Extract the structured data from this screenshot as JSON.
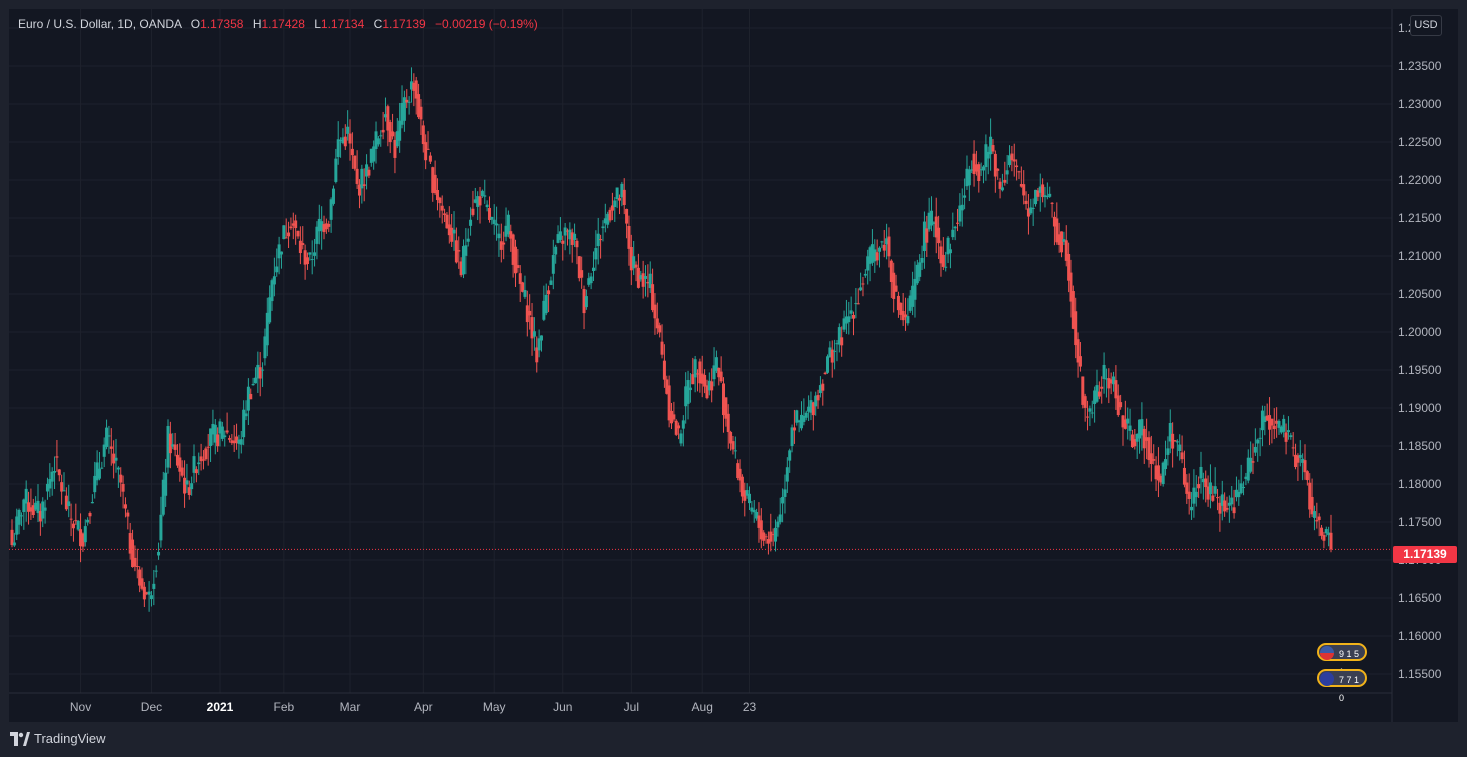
{
  "legend": {
    "symbol": "Euro / U.S. Dollar, 1D, OANDA",
    "open_label": "O",
    "open": "1.17358",
    "high_label": "H",
    "high": "1.17428",
    "low_label": "L",
    "low": "1.17134",
    "close_label": "C",
    "close": "1.17139",
    "change": "−0.00219 (−0.19%)"
  },
  "currency_button": "USD",
  "last_price_tag": "1.17139",
  "events": {
    "top_count": "9 1 5 1",
    "bottom_count": "7 7 1 0"
  },
  "footer": {
    "brand": "TradingView"
  },
  "colors": {
    "up": "#26a69a",
    "down": "#ef5350",
    "background": "#131722",
    "grid": "#1e222d",
    "axis_text": "#b2b5be"
  },
  "chart_data": {
    "type": "candlestick",
    "title": "Euro / U.S. Dollar, 1D, OANDA",
    "y_axis_ticks": [
      "1.24000",
      "1.23500",
      "1.23000",
      "1.22500",
      "1.22000",
      "1.21500",
      "1.21000",
      "1.20500",
      "1.20000",
      "1.19500",
      "1.19000",
      "1.18500",
      "1.18000",
      "1.17500",
      "1.17000",
      "1.16500",
      "1.16000",
      "1.15500"
    ],
    "x_axis_ticks": [
      "Nov",
      "Dec",
      "2021",
      "Feb",
      "Mar",
      "Apr",
      "May",
      "Jun",
      "Jul",
      "Aug",
      "23"
    ],
    "ylim": [
      1.1525,
      1.2425
    ],
    "last_price": 1.17139,
    "grid": true,
    "close_path": [
      {
        "x": 0,
        "close": 1.172
      },
      {
        "x": 5,
        "close": 1.178
      },
      {
        "x": 12,
        "close": 1.176
      },
      {
        "x": 18,
        "close": 1.183
      },
      {
        "x": 24,
        "close": 1.176
      },
      {
        "x": 30,
        "close": 1.173
      },
      {
        "x": 34,
        "close": 1.179
      },
      {
        "x": 40,
        "close": 1.186
      },
      {
        "x": 46,
        "close": 1.18
      },
      {
        "x": 50,
        "close": 1.172
      },
      {
        "x": 54,
        "close": 1.167
      },
      {
        "x": 58,
        "close": 1.165
      },
      {
        "x": 62,
        "close": 1.172
      },
      {
        "x": 66,
        "close": 1.186
      },
      {
        "x": 70,
        "close": 1.183
      },
      {
        "x": 74,
        "close": 1.179
      },
      {
        "x": 78,
        "close": 1.183
      },
      {
        "x": 84,
        "close": 1.186
      },
      {
        "x": 90,
        "close": 1.187
      },
      {
        "x": 96,
        "close": 1.185
      },
      {
        "x": 100,
        "close": 1.192
      },
      {
        "x": 106,
        "close": 1.196
      },
      {
        "x": 110,
        "close": 1.207
      },
      {
        "x": 114,
        "close": 1.212
      },
      {
        "x": 118,
        "close": 1.215
      },
      {
        "x": 122,
        "close": 1.211
      },
      {
        "x": 126,
        "close": 1.209
      },
      {
        "x": 130,
        "close": 1.214
      },
      {
        "x": 134,
        "close": 1.215
      },
      {
        "x": 138,
        "close": 1.225
      },
      {
        "x": 142,
        "close": 1.226
      },
      {
        "x": 146,
        "close": 1.219
      },
      {
        "x": 150,
        "close": 1.221
      },
      {
        "x": 154,
        "close": 1.225
      },
      {
        "x": 158,
        "close": 1.229
      },
      {
        "x": 162,
        "close": 1.224
      },
      {
        "x": 166,
        "close": 1.23
      },
      {
        "x": 170,
        "close": 1.233
      },
      {
        "x": 174,
        "close": 1.225
      },
      {
        "x": 178,
        "close": 1.22
      },
      {
        "x": 182,
        "close": 1.216
      },
      {
        "x": 186,
        "close": 1.213
      },
      {
        "x": 190,
        "close": 1.208
      },
      {
        "x": 194,
        "close": 1.216
      },
      {
        "x": 198,
        "close": 1.218
      },
      {
        "x": 202,
        "close": 1.215
      },
      {
        "x": 206,
        "close": 1.212
      },
      {
        "x": 210,
        "close": 1.214
      },
      {
        "x": 214,
        "close": 1.207
      },
      {
        "x": 218,
        "close": 1.203
      },
      {
        "x": 222,
        "close": 1.197
      },
      {
        "x": 226,
        "close": 1.205
      },
      {
        "x": 230,
        "close": 1.211
      },
      {
        "x": 234,
        "close": 1.213
      },
      {
        "x": 238,
        "close": 1.212
      },
      {
        "x": 242,
        "close": 1.204
      },
      {
        "x": 246,
        "close": 1.21
      },
      {
        "x": 250,
        "close": 1.214
      },
      {
        "x": 254,
        "close": 1.217
      },
      {
        "x": 258,
        "close": 1.218
      },
      {
        "x": 262,
        "close": 1.209
      },
      {
        "x": 266,
        "close": 1.207
      },
      {
        "x": 270,
        "close": 1.206
      },
      {
        "x": 274,
        "close": 1.199
      },
      {
        "x": 278,
        "close": 1.19
      },
      {
        "x": 282,
        "close": 1.186
      },
      {
        "x": 286,
        "close": 1.193
      },
      {
        "x": 290,
        "close": 1.196
      },
      {
        "x": 294,
        "close": 1.192
      },
      {
        "x": 298,
        "close": 1.196
      },
      {
        "x": 302,
        "close": 1.189
      },
      {
        "x": 306,
        "close": 1.183
      },
      {
        "x": 310,
        "close": 1.178
      },
      {
        "x": 314,
        "close": 1.176
      },
      {
        "x": 318,
        "close": 1.173
      },
      {
        "x": 322,
        "close": 1.173
      },
      {
        "x": 326,
        "close": 1.178
      },
      {
        "x": 330,
        "close": 1.188
      },
      {
        "x": 334,
        "close": 1.188
      },
      {
        "x": 338,
        "close": 1.19
      },
      {
        "x": 342,
        "close": 1.193
      },
      {
        "x": 346,
        "close": 1.197
      },
      {
        "x": 350,
        "close": 1.199
      },
      {
        "x": 354,
        "close": 1.202
      },
      {
        "x": 358,
        "close": 1.205
      },
      {
        "x": 362,
        "close": 1.209
      },
      {
        "x": 366,
        "close": 1.211
      },
      {
        "x": 370,
        "close": 1.212
      },
      {
        "x": 374,
        "close": 1.204
      },
      {
        "x": 378,
        "close": 1.201
      },
      {
        "x": 382,
        "close": 1.206
      },
      {
        "x": 386,
        "close": 1.213
      },
      {
        "x": 390,
        "close": 1.215
      },
      {
        "x": 394,
        "close": 1.209
      },
      {
        "x": 398,
        "close": 1.213
      },
      {
        "x": 402,
        "close": 1.217
      },
      {
        "x": 406,
        "close": 1.223
      },
      {
        "x": 410,
        "close": 1.221
      },
      {
        "x": 414,
        "close": 1.225
      },
      {
        "x": 418,
        "close": 1.219
      },
      {
        "x": 422,
        "close": 1.223
      },
      {
        "x": 426,
        "close": 1.22
      },
      {
        "x": 430,
        "close": 1.216
      },
      {
        "x": 434,
        "close": 1.219
      },
      {
        "x": 438,
        "close": 1.218
      },
      {
        "x": 442,
        "close": 1.213
      },
      {
        "x": 446,
        "close": 1.211
      },
      {
        "x": 450,
        "close": 1.199
      },
      {
        "x": 454,
        "close": 1.189
      },
      {
        "x": 458,
        "close": 1.191
      },
      {
        "x": 462,
        "close": 1.194
      },
      {
        "x": 466,
        "close": 1.193
      },
      {
        "x": 470,
        "close": 1.188
      },
      {
        "x": 474,
        "close": 1.186
      },
      {
        "x": 478,
        "close": 1.187
      },
      {
        "x": 482,
        "close": 1.184
      },
      {
        "x": 486,
        "close": 1.18
      },
      {
        "x": 490,
        "close": 1.187
      },
      {
        "x": 494,
        "close": 1.184
      },
      {
        "x": 498,
        "close": 1.177
      },
      {
        "x": 502,
        "close": 1.181
      },
      {
        "x": 506,
        "close": 1.179
      },
      {
        "x": 510,
        "close": 1.178
      },
      {
        "x": 514,
        "close": 1.177
      },
      {
        "x": 518,
        "close": 1.178
      },
      {
        "x": 522,
        "close": 1.181
      },
      {
        "x": 526,
        "close": 1.185
      },
      {
        "x": 530,
        "close": 1.189
      },
      {
        "x": 534,
        "close": 1.188
      },
      {
        "x": 538,
        "close": 1.187
      },
      {
        "x": 542,
        "close": 1.184
      },
      {
        "x": 546,
        "close": 1.183
      },
      {
        "x": 550,
        "close": 1.176
      },
      {
        "x": 554,
        "close": 1.174
      },
      {
        "x": 558,
        "close": 1.17139
      }
    ]
  }
}
